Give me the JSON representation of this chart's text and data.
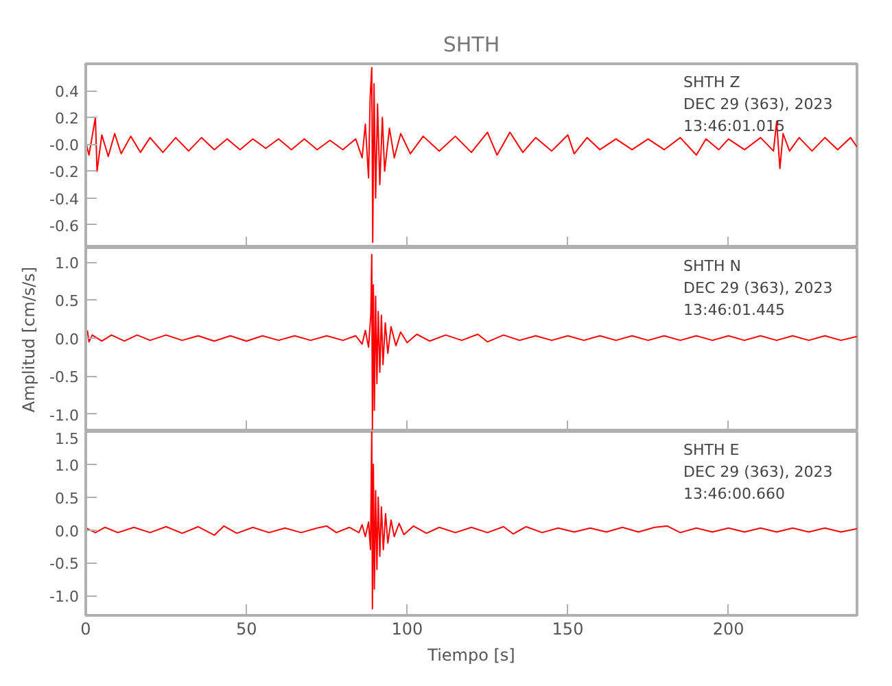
{
  "chart_data": [
    {
      "type": "line",
      "title": "SHTH",
      "annotations": [
        "SHTH   Z",
        "DEC 29 (363), 2023",
        "13:46:01.015"
      ],
      "xlim": [
        0,
        240
      ],
      "xticks": [
        0,
        50,
        100,
        150,
        200
      ],
      "ylim": [
        -0.77,
        0.6
      ],
      "yticks": [
        0.4,
        0.2,
        {
          "value": 0,
          "label": "-0.0"
        },
        -0.2,
        -0.4,
        -0.6
      ],
      "tick_labels": "y",
      "series": [
        {
          "color": "#ff0000",
          "x": [
            0,
            1,
            2,
            3,
            3.5,
            5,
            7,
            9,
            11,
            14,
            17,
            20,
            24,
            28,
            32,
            36,
            40,
            44,
            48,
            52,
            56,
            60,
            64,
            68,
            72,
            76,
            80,
            84,
            86,
            87,
            88,
            88.5,
            89,
            89.3,
            89.7,
            90.2,
            90.8,
            91.5,
            92.3,
            93,
            94.5,
            96,
            98,
            101,
            105,
            110,
            115,
            120,
            125,
            128,
            132,
            136,
            140,
            145,
            150,
            152,
            156,
            160,
            165,
            170,
            175,
            180,
            185,
            190,
            193,
            197,
            200,
            205,
            210,
            214,
            215,
            216,
            217,
            219,
            222,
            226,
            230,
            234,
            238,
            240
          ],
          "values": [
            0.02,
            -0.08,
            0.06,
            0.2,
            -0.2,
            0.07,
            -0.09,
            0.08,
            -0.07,
            0.06,
            -0.06,
            0.05,
            -0.06,
            0.05,
            -0.05,
            0.05,
            -0.04,
            0.04,
            -0.04,
            0.04,
            -0.03,
            0.04,
            -0.04,
            0.04,
            -0.04,
            0.03,
            -0.04,
            0.04,
            -0.1,
            0.15,
            -0.25,
            0.35,
            0.57,
            -0.73,
            0.45,
            -0.4,
            0.3,
            -0.3,
            0.2,
            -0.2,
            0.12,
            -0.1,
            0.08,
            -0.07,
            0.06,
            -0.05,
            0.06,
            -0.06,
            0.09,
            -0.08,
            0.09,
            -0.06,
            0.05,
            -0.05,
            0.07,
            -0.07,
            0.05,
            -0.04,
            0.04,
            -0.04,
            0.04,
            -0.04,
            0.05,
            -0.08,
            0.04,
            -0.04,
            0.04,
            -0.04,
            0.05,
            -0.05,
            0.17,
            -0.18,
            0.08,
            -0.05,
            0.05,
            -0.05,
            0.05,
            -0.04,
            0.05,
            -0.02
          ]
        }
      ]
    },
    {
      "type": "line",
      "ylabel": "Amplitud [cm/s/s]",
      "annotations": [
        "SHTH   N",
        "DEC 29 (363), 2023",
        "13:46:01.445"
      ],
      "xlim": [
        0,
        240
      ],
      "xticks": [
        0,
        50,
        100,
        150,
        200
      ],
      "ylim": [
        -1.23,
        1.19
      ],
      "yticks": [
        {
          "value": 1,
          "label": "1.0"
        },
        0.5,
        {
          "value": 0,
          "label": "0.0"
        },
        -0.5,
        {
          "value": -1,
          "label": "-1.0"
        }
      ],
      "tick_labels": "y",
      "series": [
        {
          "color": "#ff0000",
          "x": [
            0.5,
            1,
            2,
            5,
            8,
            12,
            16,
            20,
            25,
            30,
            35,
            40,
            45,
            50,
            55,
            60,
            65,
            70,
            75,
            80,
            84,
            86,
            87,
            88,
            88.7,
            89,
            89.2,
            89.5,
            89.8,
            90.2,
            90.6,
            91,
            91.5,
            92,
            92.5,
            93.2,
            94,
            95,
            96.5,
            98,
            100,
            103,
            107,
            112,
            117,
            122,
            125,
            130,
            135,
            140,
            145,
            150,
            155,
            160,
            165,
            170,
            175,
            180,
            185,
            190,
            195,
            200,
            205,
            210,
            215,
            220,
            225,
            230,
            235,
            240
          ],
          "values": [
            0.1,
            -0.05,
            0.04,
            -0.04,
            0.04,
            -0.04,
            0.04,
            -0.03,
            0.04,
            -0.03,
            0.03,
            -0.04,
            0.03,
            -0.04,
            0.03,
            -0.03,
            0.03,
            -0.03,
            0.03,
            -0.03,
            0.03,
            -0.08,
            0.1,
            -0.12,
            0.3,
            1.1,
            -1.2,
            0.7,
            -0.95,
            0.55,
            -0.6,
            0.35,
            -0.45,
            0.3,
            -0.35,
            0.2,
            -0.2,
            0.15,
            -0.1,
            0.08,
            -0.06,
            0.05,
            -0.04,
            0.04,
            -0.03,
            0.05,
            -0.05,
            0.04,
            -0.03,
            0.03,
            -0.03,
            0.03,
            -0.03,
            0.03,
            -0.03,
            0.03,
            -0.03,
            0.03,
            -0.03,
            0.03,
            -0.03,
            0.03,
            -0.03,
            0.03,
            -0.03,
            0.03,
            -0.03,
            0.03,
            -0.03,
            0.02
          ]
        }
      ]
    },
    {
      "type": "line",
      "xlabel": "Tiempo [s]",
      "annotations": [
        "SHTH   E",
        "DEC 29 (363), 2023",
        "13:46:00.660"
      ],
      "xlim": [
        0,
        240
      ],
      "xticks": [
        0,
        50,
        100,
        150,
        200
      ],
      "ylim": [
        -1.3,
        1.5
      ],
      "yticks": [
        1.5,
        {
          "value": 1,
          "label": "1.0"
        },
        0.5,
        {
          "value": 0,
          "label": "0.0"
        },
        -0.5,
        {
          "value": -1,
          "label": "-1.0"
        }
      ],
      "series": [
        {
          "color": "#ff0000",
          "x": [
            0,
            3,
            6,
            10,
            15,
            20,
            25,
            30,
            35,
            40,
            43,
            47,
            52,
            57,
            62,
            67,
            72,
            75,
            78,
            82,
            85,
            86,
            87,
            88,
            88.6,
            89,
            89.2,
            89.5,
            89.8,
            90.2,
            90.6,
            91,
            91.5,
            92,
            92.6,
            93.3,
            94,
            95,
            96,
            97.5,
            99,
            102,
            106,
            110,
            115,
            120,
            125,
            130,
            133,
            137,
            142,
            147,
            152,
            157,
            162,
            167,
            172,
            177,
            181,
            185,
            190,
            195,
            200,
            205,
            210,
            215,
            220,
            225,
            230,
            235,
            240
          ],
          "values": [
            0.03,
            -0.04,
            0.04,
            -0.04,
            0.04,
            -0.04,
            0.05,
            -0.05,
            0.05,
            -0.08,
            0.06,
            -0.05,
            0.04,
            -0.04,
            0.03,
            -0.04,
            0.03,
            0.06,
            -0.04,
            0.04,
            -0.04,
            0.08,
            -0.1,
            0.12,
            -0.3,
            1.5,
            -1.2,
            1.0,
            -0.9,
            0.6,
            -0.6,
            0.5,
            -0.4,
            0.35,
            -0.3,
            0.25,
            -0.2,
            0.15,
            -0.1,
            0.1,
            -0.07,
            0.06,
            -0.05,
            0.04,
            -0.04,
            0.04,
            -0.04,
            0.05,
            -0.06,
            0.05,
            -0.04,
            0.03,
            -0.03,
            0.03,
            -0.03,
            0.04,
            -0.03,
            0.04,
            0.06,
            -0.04,
            0.03,
            -0.03,
            0.03,
            -0.03,
            0.03,
            -0.03,
            0.03,
            -0.03,
            0.03,
            -0.03,
            0.02
          ]
        }
      ]
    }
  ]
}
